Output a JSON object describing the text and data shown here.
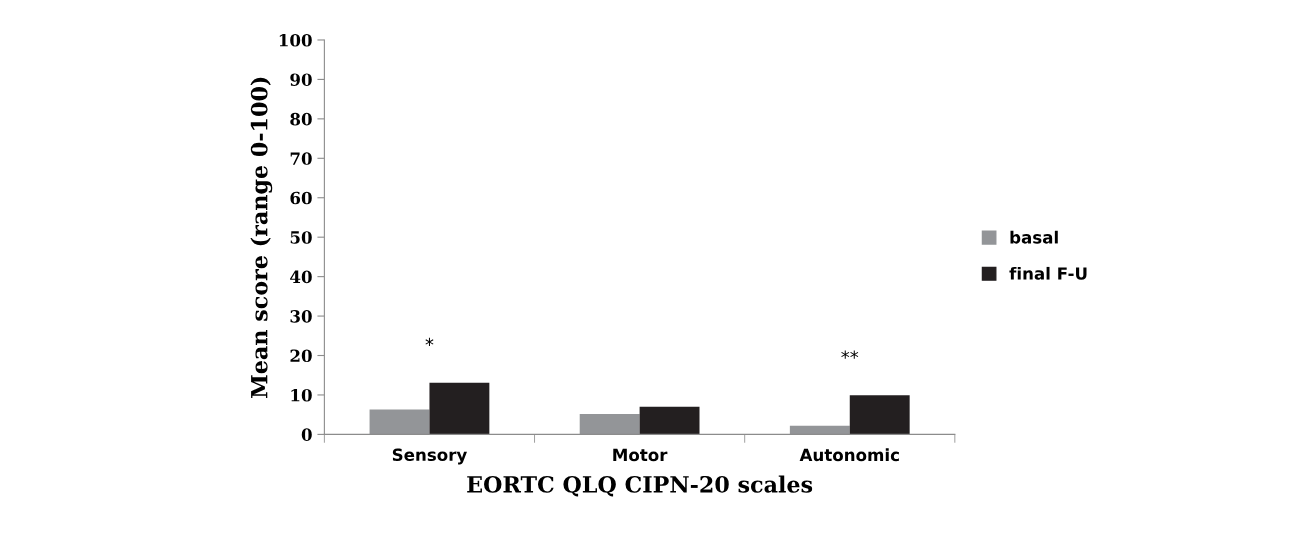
{
  "chart_data": {
    "type": "bar",
    "xlabel": "EORTC QLQ CIPN-20 scales",
    "ylabel": "Mean score (range 0-100)",
    "categories": [
      "Sensory",
      "Motor",
      "Autonomic"
    ],
    "series": [
      {
        "name": "basal",
        "color": "#939598",
        "values": [
          6.3,
          5.2,
          2.2
        ]
      },
      {
        "name": "final F-U",
        "color": "#231f20",
        "values": [
          13.1,
          7.0,
          9.9
        ]
      }
    ],
    "ylim": [
      0,
      100
    ],
    "yticks": [
      0,
      10,
      20,
      30,
      40,
      50,
      60,
      70,
      80,
      90,
      100
    ],
    "annotations": [
      {
        "text": "*",
        "x": "Sensory",
        "y": 13.1
      },
      {
        "text": "**",
        "x": "Autonomic",
        "y": 9.9
      }
    ],
    "grid": false,
    "legend": "right"
  }
}
